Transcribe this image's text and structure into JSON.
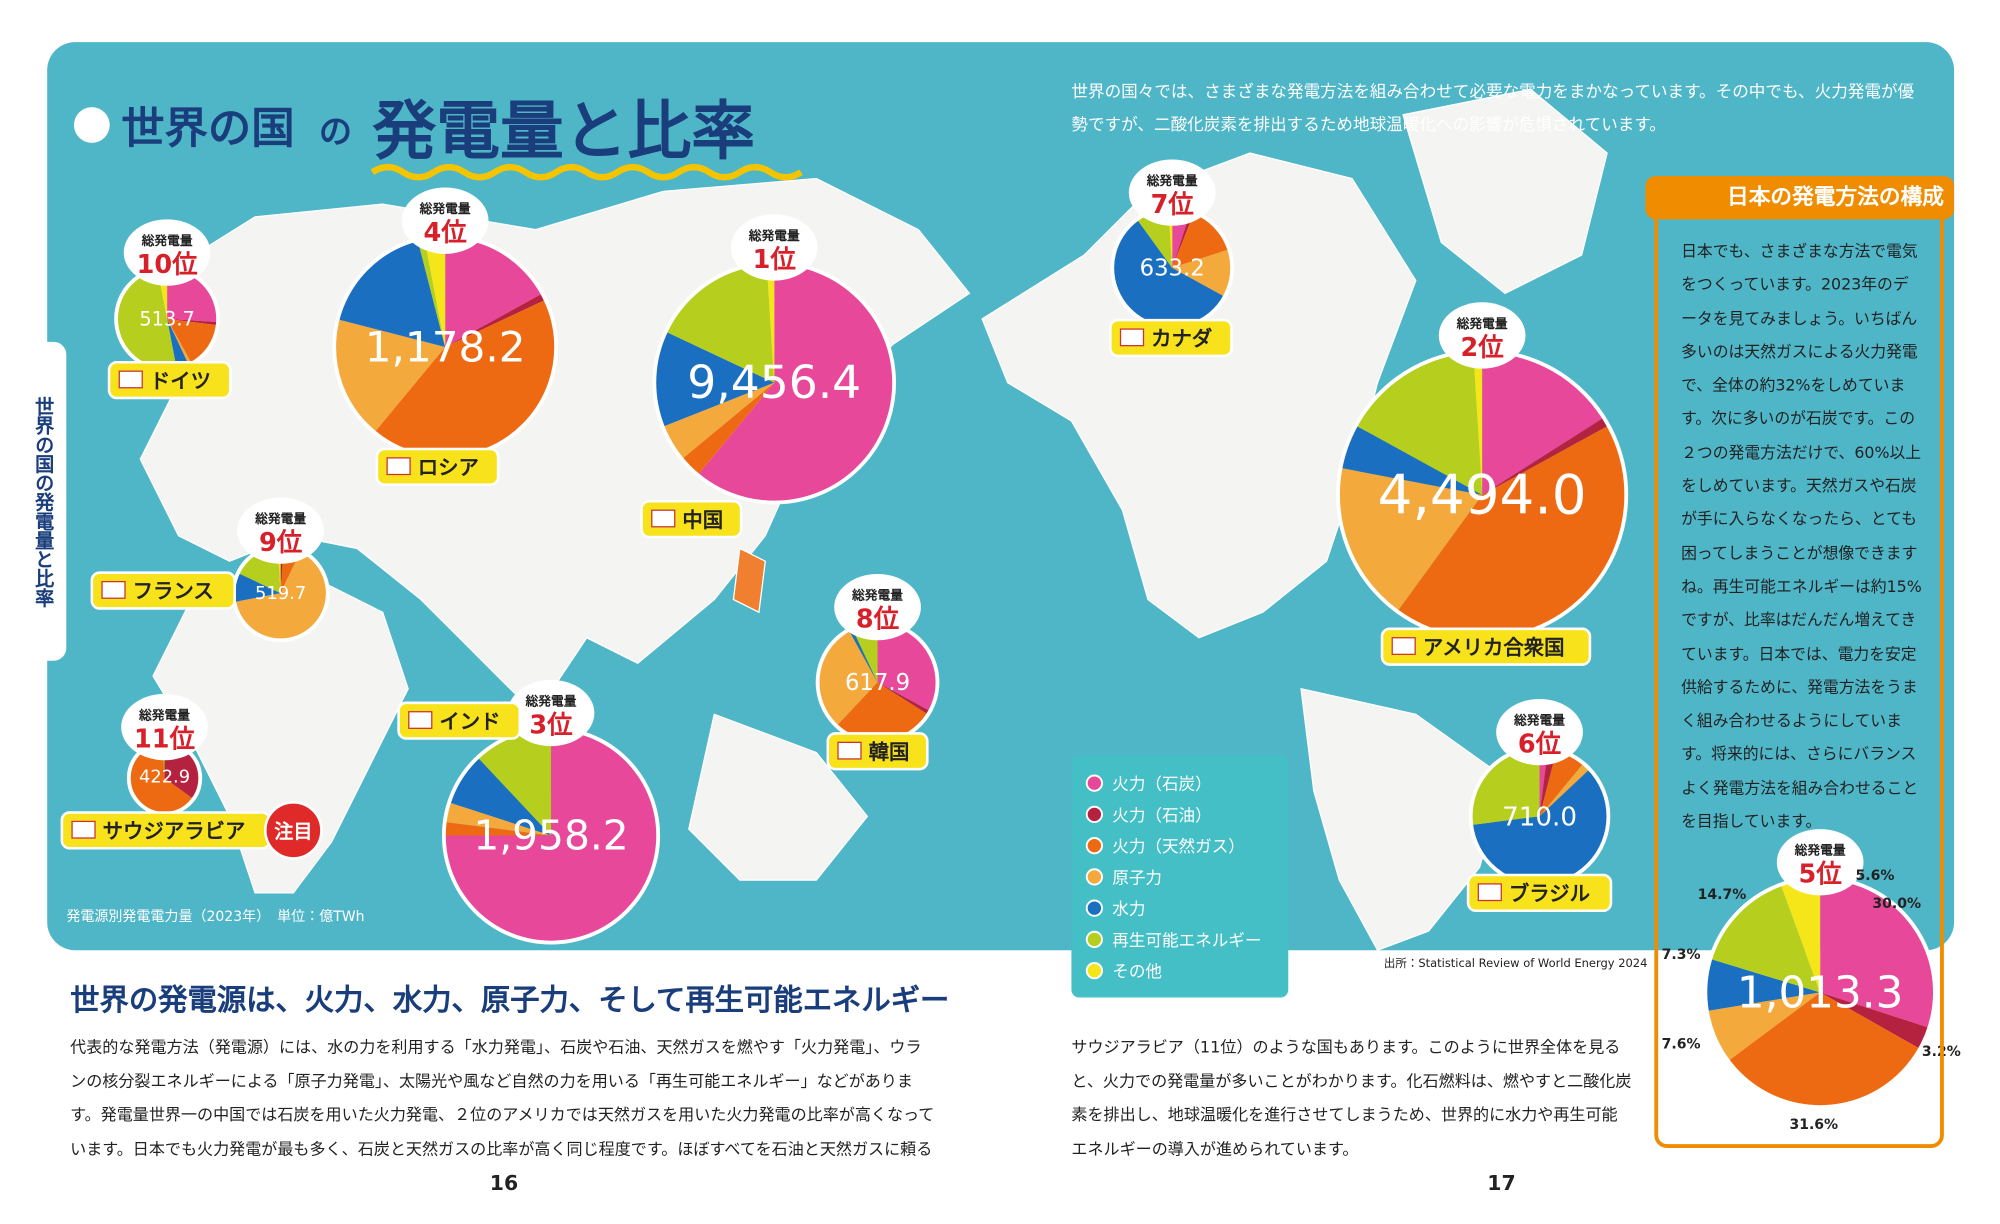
{
  "header": {
    "title_a": "世界の国",
    "title_b": "の",
    "title_c": "発電量と比率"
  },
  "intro": "世界の国々では、さまざまな発電方法を組み合わせて必要な電力をまかなっています。その中でも、火力発電が優勢ですが、二酸化炭素を排出するため地球温暖化への影響が危惧されています。",
  "side_tab": "世界の国の発電量と比率",
  "unit_note": "発電源別発電電力量（2023年）　単位：億TWh",
  "source": "出所：Statistical Review of World Energy 2024",
  "total_caption": "総発電量",
  "featured": "注目",
  "sources": [
    {
      "name": "火力（石炭）",
      "color": "#e8489a"
    },
    {
      "name": "火力（石油）",
      "color": "#b5223f"
    },
    {
      "name": "火力（天然ガス）",
      "color": "#ee6a12"
    },
    {
      "name": "原子力",
      "color": "#f4a93c"
    },
    {
      "name": "水力",
      "color": "#1a6fc0"
    },
    {
      "name": "再生可能エネルギー",
      "color": "#b6cf1e"
    },
    {
      "name": "その他",
      "color": "#f5e61a"
    }
  ],
  "countries": [
    {
      "name": "中国",
      "rank": "1位",
      "total": "9,456.4",
      "shares": [
        61,
        0,
        3,
        5,
        13,
        17,
        1
      ]
    },
    {
      "name": "アメリカ合衆国",
      "rank": "2位",
      "total": "4,494.0",
      "shares": [
        16,
        1,
        43,
        18,
        5,
        16,
        1
      ]
    },
    {
      "name": "インド",
      "rank": "3位",
      "total": "1,958.2",
      "shares": [
        75,
        0,
        2,
        3,
        8,
        12,
        0
      ]
    },
    {
      "name": "ロシア",
      "rank": "4位",
      "total": "1,178.2",
      "shares": [
        17,
        1,
        43,
        18,
        17,
        1,
        3
      ]
    },
    {
      "rank": "5位",
      "total": "1,013.3",
      "shares": [
        30.0,
        3.2,
        31.6,
        7.6,
        7.3,
        14.7,
        5.6
      ],
      "share_labels": [
        "30.0%",
        "3.2%",
        "31.6%",
        "7.6%",
        "7.3%",
        "14.7%",
        "5.6%"
      ]
    },
    {
      "name": "ブラジル",
      "rank": "6位",
      "total": "710.0",
      "shares": [
        2,
        2,
        7,
        2,
        60,
        27,
        0
      ]
    },
    {
      "name": "カナダ",
      "rank": "7位",
      "total": "633.2",
      "shares": [
        5,
        1,
        14,
        13,
        57,
        9,
        1
      ]
    },
    {
      "name": "韓国",
      "rank": "8位",
      "total": "617.9",
      "shares": [
        33,
        1,
        28,
        30,
        1,
        7,
        0
      ]
    },
    {
      "name": "フランス",
      "rank": "9位",
      "total": "519.7",
      "shares": [
        0,
        1,
        6,
        65,
        10,
        17,
        1
      ]
    },
    {
      "name": "ドイツ",
      "rank": "10位",
      "total": "513.7",
      "shares": [
        26,
        1,
        15,
        1,
        4,
        50,
        3
      ]
    },
    {
      "name": "サウジアラビア",
      "rank": "11位",
      "total": "422.9",
      "shares": [
        0,
        35,
        64,
        0,
        0,
        1,
        0
      ]
    }
  ],
  "japan_box": {
    "title": "日本の発電方法の構成",
    "text": "日本でも、さまざまな方法で電気をつくっています。2023年のデータを見てみましょう。いちばん多いのは天然ガスによる火力発電で、全体の約32%をしめています。次に多いのが石炭です。この２つの発電方法だけで、60%以上をしめています。天然ガスや石炭が手に入らなくなったら、とても困ってしまうことが想像できますね。再生可能エネルギーは約15%ですが、比率はだんだん増えてきています。日本では、電力を安定供給するために、発電方法をうまく組み合わせるようにしています。将来的には、さらにバランスよく発電方法を組み合わせることを目指しています。"
  },
  "section": {
    "heading": "世界の発電源は、火力、水力、原子力、そして再生可能エネルギー",
    "left": "代表的な発電方法（発電源）には、水の力を利用する「水力発電」、石炭や石油、天然ガスを燃やす「火力発電」、ウランの核分裂エネルギーによる「原子力発電」、太陽光や風など自然の力を用いる「再生可能エネルギー」などがあります。発電量世界一の中国では石炭を用いた火力発電、２位のアメリカでは天然ガスを用いた火力発電の比率が高くなっています。日本でも火力発電が最も多く、石炭と天然ガスの比率が高く同じ程度です。ほぼすべてを石油と天然ガスに頼る",
    "right": "サウジアラビア（11位）のような国もあります。このように世界全体を見ると、火力での発電量が多いことがわかります。化石燃料は、燃やすと二酸化炭素を排出し、地球温暖化を進行させてしまうため、世界的に水力や再生可能エネルギーの導入が進められています。"
  },
  "pages": [
    "16",
    "17"
  ]
}
